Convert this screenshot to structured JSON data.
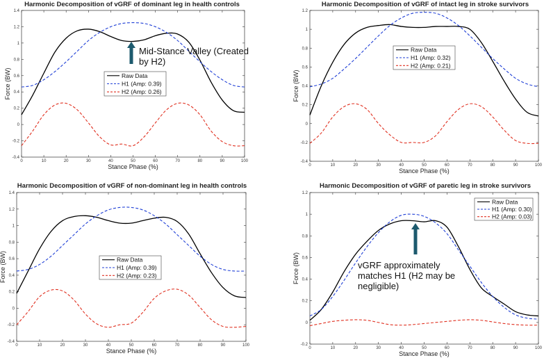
{
  "chart_data": [
    {
      "type": "line",
      "title": "Harmonic Decomposition of vGRF of dominant leg in health controls",
      "xlabel": "Stance Phase (%)",
      "ylabel": "Force (BW)",
      "xlim": [
        0,
        100
      ],
      "ylim": [
        -0.4,
        1.4
      ],
      "xticks": [
        "0",
        "10",
        "20",
        "30",
        "40",
        "50",
        "60",
        "70",
        "80",
        "90",
        "100"
      ],
      "yticks": [
        "-0.4",
        "-0.2",
        "0",
        "0.2",
        "0.4",
        "0.6",
        "0.8",
        "1",
        "1.2",
        "1.4"
      ],
      "legend": {
        "placement": "center",
        "entries": [
          "Raw Data",
          "H1 (Amp: 0.39)",
          "H2 (Amp: 0.26)"
        ]
      },
      "x": [
        0,
        5,
        10,
        15,
        20,
        25,
        30,
        35,
        40,
        45,
        50,
        55,
        60,
        65,
        70,
        75,
        80,
        85,
        90,
        95,
        100
      ],
      "series": [
        {
          "name": "Raw Data",
          "color": "#000000",
          "style": "solid",
          "values": [
            0.12,
            0.36,
            0.63,
            0.89,
            1.06,
            1.15,
            1.17,
            1.14,
            1.08,
            1.03,
            1.02,
            1.04,
            1.09,
            1.12,
            1.11,
            1.01,
            0.79,
            0.52,
            0.3,
            0.17,
            0.15
          ]
        },
        {
          "name": "H1 (Amp: 0.39)",
          "color": "#1f3fd6",
          "style": "dashed",
          "values": [
            0.46,
            0.48,
            0.55,
            0.65,
            0.77,
            0.9,
            1.03,
            1.13,
            1.2,
            1.24,
            1.25,
            1.24,
            1.2,
            1.13,
            1.03,
            0.9,
            0.77,
            0.65,
            0.55,
            0.48,
            0.46
          ]
        },
        {
          "name": "H2 (Amp: 0.26)",
          "color": "#e03020",
          "style": "dashed",
          "values": [
            -0.26,
            -0.08,
            0.12,
            0.24,
            0.26,
            0.18,
            0.02,
            -0.15,
            -0.25,
            -0.24,
            -0.26,
            -0.15,
            0.02,
            0.18,
            0.26,
            0.24,
            0.12,
            -0.08,
            -0.21,
            -0.26,
            -0.26
          ]
        }
      ],
      "annotation": {
        "text_lines": [
          "Mid-Stance Valley (Created",
          "by H2)"
        ],
        "arrow_to": [
          48,
          1.02
        ]
      }
    },
    {
      "type": "line",
      "title": "Harmonic Decomposition of vGRF of intact leg in stroke survivors",
      "xlabel": "Stance Phase (%)",
      "ylabel": "Force (BW)",
      "xlim": [
        0,
        100
      ],
      "ylim": [
        -0.4,
        1.2
      ],
      "xticks": [
        "0",
        "10",
        "20",
        "30",
        "40",
        "50",
        "60",
        "70",
        "80",
        "90",
        "100"
      ],
      "yticks": [
        "-0.4",
        "-0.2",
        "0",
        "0.2",
        "0.4",
        "0.6",
        "0.8",
        "1",
        "1.2"
      ],
      "legend": {
        "placement": "center",
        "entries": [
          "Raw Data",
          "H1 (Amp: 0.32)",
          "H2 (Amp: 0.21)"
        ]
      },
      "x": [
        0,
        5,
        10,
        15,
        20,
        25,
        30,
        35,
        40,
        45,
        50,
        55,
        60,
        65,
        70,
        75,
        80,
        85,
        90,
        95,
        100
      ],
      "series": [
        {
          "name": "Raw Data",
          "color": "#000000",
          "style": "solid",
          "values": [
            0.09,
            0.4,
            0.65,
            0.84,
            0.96,
            1.02,
            1.04,
            1.05,
            1.03,
            1.02,
            1.02,
            1.03,
            1.03,
            1.03,
            1.0,
            0.86,
            0.66,
            0.45,
            0.26,
            0.12,
            0.08
          ]
        },
        {
          "name": "H1 (Amp: 0.32)",
          "color": "#1f3fd6",
          "style": "dashed",
          "values": [
            0.39,
            0.42,
            0.48,
            0.58,
            0.69,
            0.81,
            0.93,
            1.04,
            1.12,
            1.17,
            1.18,
            1.17,
            1.12,
            1.04,
            0.93,
            0.81,
            0.69,
            0.58,
            0.48,
            0.42,
            0.39
          ]
        },
        {
          "name": "H2 (Amp: 0.21)",
          "color": "#e03020",
          "style": "dashed",
          "values": [
            -0.21,
            -0.1,
            0.07,
            0.18,
            0.21,
            0.15,
            0.0,
            -0.12,
            -0.2,
            -0.2,
            -0.2,
            -0.13,
            0.02,
            0.15,
            0.21,
            0.18,
            0.07,
            -0.07,
            -0.18,
            -0.21,
            -0.21
          ]
        }
      ]
    },
    {
      "type": "line",
      "title": "Harmonic Decomposition of vGRF of non-dominant leg in health controls",
      "xlabel": "Stance Phase (%)",
      "ylabel": "Force (BW)",
      "xlim": [
        0,
        100
      ],
      "ylim": [
        -0.4,
        1.4
      ],
      "xticks": [
        "0",
        "10",
        "20",
        "30",
        "40",
        "50",
        "60",
        "70",
        "80",
        "90",
        "100"
      ],
      "yticks": [
        "-0.4",
        "-0.2",
        "0",
        "0.2",
        "0.4",
        "0.6",
        "0.8",
        "1",
        "1.2",
        "1.4"
      ],
      "legend": {
        "placement": "center",
        "entries": [
          "Raw Data",
          "H1 (Amp: 0.39)",
          "H2 (Amp: 0.23)"
        ]
      },
      "x": [
        0,
        5,
        10,
        15,
        20,
        25,
        30,
        35,
        40,
        45,
        50,
        55,
        60,
        65,
        70,
        75,
        80,
        85,
        90,
        95,
        100
      ],
      "series": [
        {
          "name": "Raw Data",
          "color": "#000000",
          "style": "solid",
          "values": [
            0.18,
            0.45,
            0.72,
            0.93,
            1.06,
            1.11,
            1.12,
            1.1,
            1.06,
            1.03,
            1.03,
            1.06,
            1.09,
            1.1,
            1.05,
            0.9,
            0.66,
            0.43,
            0.25,
            0.15,
            0.13
          ]
        },
        {
          "name": "H1 (Amp: 0.39)",
          "color": "#1f3fd6",
          "style": "dashed",
          "values": [
            0.45,
            0.47,
            0.53,
            0.63,
            0.76,
            0.89,
            1.02,
            1.12,
            1.19,
            1.22,
            1.22,
            1.19,
            1.12,
            1.02,
            0.89,
            0.76,
            0.63,
            0.53,
            0.47,
            0.45,
            0.45
          ]
        },
        {
          "name": "H2 (Amp: 0.23)",
          "color": "#e03020",
          "style": "dashed",
          "values": [
            -0.2,
            -0.04,
            0.14,
            0.22,
            0.21,
            0.1,
            -0.07,
            -0.19,
            -0.23,
            -0.2,
            -0.18,
            -0.05,
            0.12,
            0.21,
            0.23,
            0.16,
            0.01,
            -0.14,
            -0.22,
            -0.23,
            -0.22
          ]
        }
      ]
    },
    {
      "type": "line",
      "title": "Harmonic Decomposition of vGRF of paretic leg in stroke survivors",
      "xlabel": "Stance Phase (%)",
      "ylabel": "Force (BW)",
      "xlim": [
        0,
        100
      ],
      "ylim": [
        -0.2,
        1.2
      ],
      "xticks": [
        "0",
        "10",
        "20",
        "30",
        "40",
        "50",
        "60",
        "70",
        "80",
        "90",
        "100"
      ],
      "yticks": [
        "-0.2",
        "0",
        "0.2",
        "0.4",
        "0.6",
        "0.8",
        "1",
        "1.2"
      ],
      "legend": {
        "placement": "top-right",
        "entries": [
          "Raw Data",
          "H1 (Amp: 0.30)",
          "H2 (Amp: 0.03)"
        ]
      },
      "x": [
        0,
        5,
        10,
        15,
        20,
        25,
        30,
        35,
        40,
        45,
        50,
        55,
        60,
        65,
        70,
        75,
        80,
        85,
        90,
        95,
        100
      ],
      "series": [
        {
          "name": "Raw Data",
          "color": "#000000",
          "style": "solid",
          "values": [
            0.02,
            0.12,
            0.28,
            0.47,
            0.63,
            0.75,
            0.85,
            0.91,
            0.94,
            0.94,
            0.93,
            0.94,
            0.88,
            0.7,
            0.49,
            0.32,
            0.24,
            0.17,
            0.1,
            0.07,
            0.06
          ]
        },
        {
          "name": "H1 (Amp: 0.30)",
          "color": "#1f3fd6",
          "style": "dashed",
          "values": [
            0.06,
            0.12,
            0.24,
            0.39,
            0.55,
            0.7,
            0.83,
            0.93,
            0.99,
            1.0,
            0.98,
            0.92,
            0.82,
            0.67,
            0.52,
            0.37,
            0.24,
            0.14,
            0.07,
            0.04,
            0.03
          ]
        },
        {
          "name": "H2 (Amp: 0.03)",
          "color": "#e03020",
          "style": "dashed",
          "values": [
            -0.03,
            -0.01,
            0.01,
            0.02,
            0.025,
            0.02,
            0.0,
            -0.02,
            -0.025,
            -0.02,
            -0.01,
            0.0,
            0.01,
            0.02,
            0.025,
            0.02,
            0.005,
            -0.01,
            -0.02,
            -0.025,
            -0.025
          ]
        }
      ],
      "annotation": {
        "text_lines": [
          "vGRF approximately",
          "matches H1 (H2 may be",
          "negligible)"
        ],
        "arrow_to": [
          46,
          0.93
        ]
      }
    }
  ]
}
